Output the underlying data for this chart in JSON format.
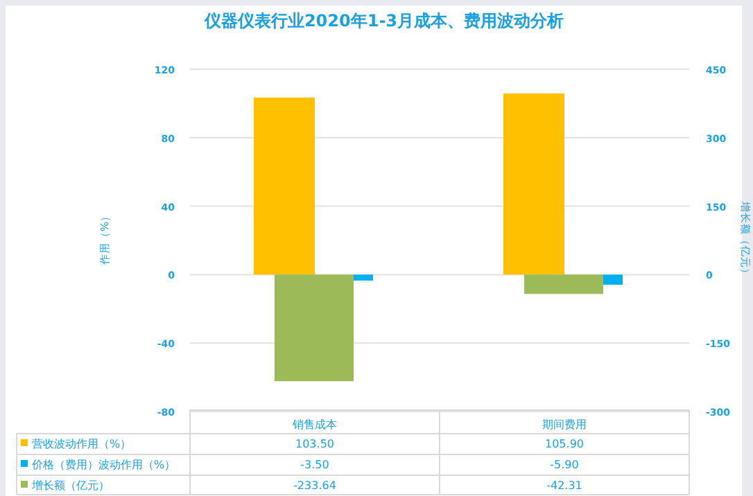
{
  "chart_data": {
    "type": "bar",
    "title": "仪器仪表行业2020年1-3月成本、费用波动分析",
    "ylabel": "作用（%）",
    "y2label": "增长额（亿元）",
    "categories": [
      "销售成本",
      "期间费用"
    ],
    "series": [
      {
        "name": "营收波动作用（%）",
        "color": "#ffc000",
        "values": [
          103.5,
          105.9
        ],
        "value_labels": [
          "103.50",
          "105.90"
        ]
      },
      {
        "name": "价格（费用）波动作用（%）",
        "color": "#00b0f0",
        "values": [
          -3.5,
          -5.9
        ],
        "value_labels": [
          "-3.50",
          "-5.90"
        ]
      },
      {
        "name": "增长额（亿元）",
        "color": "#9bbb59",
        "values": [
          -233.64,
          -42.31
        ],
        "value_labels": [
          "-233.64",
          "-42.31"
        ],
        "axis": "y2"
      }
    ],
    "ylim": [
      -80,
      120
    ],
    "yticks": [
      -80,
      -40,
      0,
      40,
      80,
      120
    ],
    "y2lim": [
      -300,
      450
    ],
    "y2ticks": [
      -300,
      -150,
      0,
      150,
      300,
      450
    ],
    "grid": "y",
    "legend": "bottom"
  }
}
